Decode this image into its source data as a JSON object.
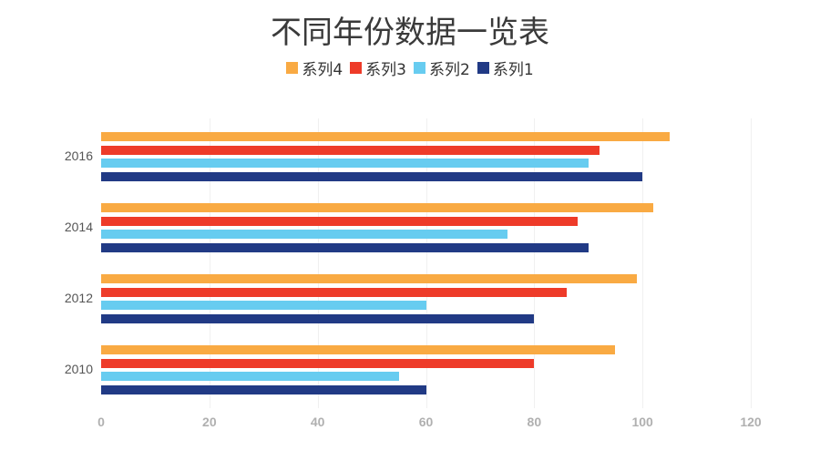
{
  "title": "不同年份数据一览表",
  "legend": [
    {
      "label": "系列4",
      "color": "#F9AA43"
    },
    {
      "label": "系列3",
      "color": "#EE3B29"
    },
    {
      "label": "系列2",
      "color": "#67CCF0"
    },
    {
      "label": "系列1",
      "color": "#213A85"
    }
  ],
  "chart_data": {
    "type": "bar",
    "orientation": "horizontal",
    "title": "不同年份数据一览表",
    "categories": [
      "2010",
      "2012",
      "2014",
      "2016"
    ],
    "series": [
      {
        "name": "系列1",
        "color": "#213A85",
        "values": [
          60,
          80,
          90,
          100
        ]
      },
      {
        "name": "系列2",
        "color": "#67CCF0",
        "values": [
          55,
          60,
          75,
          90
        ]
      },
      {
        "name": "系列3",
        "color": "#EE3B29",
        "values": [
          80,
          86,
          88,
          92
        ]
      },
      {
        "name": "系列4",
        "color": "#F9AA43",
        "values": [
          95,
          99,
          102,
          105
        ]
      }
    ],
    "xlabel": "",
    "ylabel": "",
    "xlim": [
      0,
      120
    ],
    "xticks": [
      "0",
      "20",
      "40",
      "60",
      "80",
      "100",
      "120"
    ],
    "grid": true,
    "legend_position": "top"
  }
}
